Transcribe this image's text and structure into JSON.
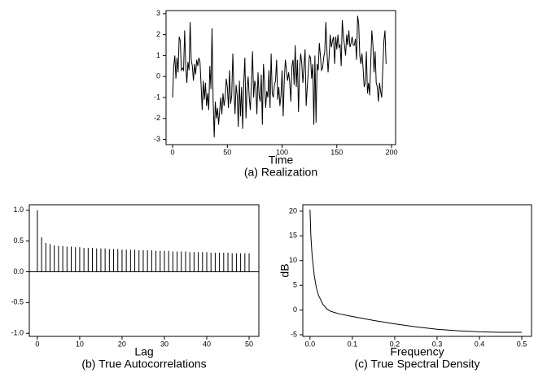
{
  "chart_data": [
    {
      "type": "line",
      "title": "(a) Realization",
      "xlabel": "Time",
      "color": "#000000",
      "x": [
        0,
        1,
        2,
        3,
        4,
        5,
        6,
        7,
        8,
        9,
        10,
        11,
        12,
        13,
        14,
        15,
        16,
        17,
        18,
        19,
        20,
        21,
        22,
        23,
        24,
        25,
        26,
        27,
        28,
        29,
        30,
        31,
        32,
        33,
        34,
        35,
        36,
        37,
        38,
        39,
        40,
        41,
        42,
        43,
        44,
        45,
        46,
        47,
        48,
        49,
        50,
        51,
        52,
        53,
        54,
        55,
        56,
        57,
        58,
        59,
        60,
        61,
        62,
        63,
        64,
        65,
        66,
        67,
        68,
        69,
        70,
        71,
        72,
        73,
        74,
        75,
        76,
        77,
        78,
        79,
        80,
        81,
        82,
        83,
        84,
        85,
        86,
        87,
        88,
        89,
        90,
        91,
        92,
        93,
        94,
        95,
        96,
        97,
        98,
        99,
        100,
        101,
        102,
        103,
        104,
        105,
        106,
        107,
        108,
        109,
        110,
        111,
        112,
        113,
        114,
        115,
        116,
        117,
        118,
        119,
        120,
        121,
        122,
        123,
        124,
        125,
        126,
        127,
        128,
        129,
        130,
        131,
        132,
        133,
        134,
        135,
        136,
        137,
        138,
        139,
        140,
        141,
        142,
        143,
        144,
        145,
        146,
        147,
        148,
        149,
        150,
        151,
        152,
        153,
        154,
        155,
        156,
        157,
        158,
        159,
        160,
        161,
        162,
        163,
        164,
        165,
        166,
        167,
        168,
        169,
        170,
        171,
        172,
        173,
        174,
        175,
        176,
        177,
        178,
        179,
        180,
        181,
        182,
        183,
        184,
        185,
        186,
        187,
        188,
        189,
        190,
        191,
        192,
        193,
        194,
        195
      ],
      "values": [
        -1.0,
        0.5,
        1.0,
        -0.1,
        0.9,
        0.2,
        1.9,
        1.7,
        0.3,
        0.4,
        0.3,
        2.2,
        0.5,
        -0.3,
        0.7,
        0.3,
        2.6,
        0.8,
        0.5,
        -0.2,
        0.6,
        0.1,
        0.8,
        0.5,
        0.9,
        0.7,
        -0.4,
        -1.6,
        -0.2,
        -1.1,
        -0.3,
        -1.4,
        -0.8,
        -1.6,
        0.5,
        -0.6,
        2.3,
        -1.1,
        -2.9,
        -1.2,
        -2.0,
        -1.5,
        -2.3,
        -1.6,
        -1.0,
        -1.8,
        -0.8,
        -1.4,
        -1.0,
        -0.1,
        -0.5,
        -1.5,
        0.3,
        -1.3,
        -0.9,
        1.1,
        -0.6,
        -1.8,
        -0.4,
        -0.9,
        -2.4,
        -0.2,
        -1.9,
        -0.5,
        -2.5,
        -0.3,
        0.9,
        -2.0,
        -0.6,
        0.0,
        -1.0,
        -1.6,
        -0.3,
        1.2,
        -1.0,
        -0.2,
        -0.5,
        -1.8,
        0.2,
        -0.9,
        -1.2,
        0.1,
        -2.3,
        0.6,
        -0.3,
        -1.5,
        -0.7,
        -1.0,
        0.3,
        -1.5,
        1.1,
        -0.8,
        -1.0,
        -0.4,
        -0.2,
        0.8,
        -1.1,
        -0.5,
        -1.4,
        -0.9,
        0.3,
        -1.9,
        -0.2,
        0.8,
        0.3,
        -0.2,
        0.2,
        -0.3,
        -1.2,
        0.5,
        0.8,
        -0.4,
        1.5,
        -0.5,
        0.8,
        -1.7,
        0.3,
        1.1,
        0.6,
        -0.3,
        0.5,
        1.3,
        -1.4,
        -0.5,
        0.3,
        1.0,
        0.9,
        -0.1,
        0.6,
        -2.3,
        1.0,
        -2.2,
        0.6,
        0.3,
        1.6,
        1.0,
        0.3,
        0.4,
        0.9,
        1.2,
        2.6,
        1.2,
        0.2,
        1.0,
        2.0,
        1.4,
        1.7,
        1.9,
        0.6,
        1.9,
        1.3,
        2.0,
        1.4,
        1.5,
        0.5,
        2.7,
        1.9,
        1.5,
        1.0,
        2.0,
        1.5,
        2.2,
        1.4,
        1.6,
        1.9,
        1.5,
        1.5,
        1.8,
        0.8,
        2.9,
        2.5,
        1.0,
        0.6,
        1.1,
        0.4,
        -0.5,
        -0.3,
        1.2,
        -0.8,
        -0.3,
        -0.9,
        0.7,
        2.2,
        1.5,
        0.2,
        1.2,
        -0.3,
        -0.5,
        -1.2,
        -0.3,
        -0.7,
        -1.0,
        0.4,
        1.7,
        2.2,
        0.6
      ],
      "xlim": [
        -6,
        203.7
      ],
      "xticks": [
        0,
        50,
        100,
        150,
        200
      ],
      "ylim": [
        -3.25,
        3.15
      ],
      "yticks": [
        -3,
        -2,
        -1,
        0,
        1,
        2,
        3
      ]
    },
    {
      "type": "stem",
      "title": "(b) True Autocorrelations",
      "xlabel": "Lag",
      "color": "#000000",
      "x": [
        0,
        1,
        2,
        3,
        4,
        5,
        6,
        7,
        8,
        9,
        10,
        11,
        12,
        13,
        14,
        15,
        16,
        17,
        18,
        19,
        20,
        21,
        22,
        23,
        24,
        25,
        26,
        27,
        28,
        29,
        30,
        31,
        32,
        33,
        34,
        35,
        36,
        37,
        38,
        39,
        40,
        41,
        42,
        43,
        44,
        45,
        46,
        47,
        48,
        49,
        50
      ],
      "values": [
        1.0,
        0.56,
        0.47,
        0.45,
        0.43,
        0.42,
        0.42,
        0.41,
        0.41,
        0.4,
        0.4,
        0.39,
        0.39,
        0.39,
        0.38,
        0.38,
        0.38,
        0.37,
        0.37,
        0.37,
        0.36,
        0.36,
        0.36,
        0.36,
        0.35,
        0.35,
        0.35,
        0.35,
        0.34,
        0.34,
        0.34,
        0.34,
        0.33,
        0.33,
        0.33,
        0.33,
        0.32,
        0.32,
        0.32,
        0.32,
        0.32,
        0.31,
        0.31,
        0.31,
        0.31,
        0.31,
        0.3,
        0.3,
        0.3,
        0.3,
        0.3
      ],
      "xlim": [
        -1.9,
        52.3
      ],
      "xticks": [
        0,
        10,
        20,
        30,
        40,
        50
      ],
      "ylim": [
        -1.05,
        1.09
      ],
      "yticks": [
        {
          "value": -1,
          "label": "-1.0"
        },
        -0.5,
        {
          "value": 0,
          "label": "0.0"
        },
        0.5,
        {
          "value": 1,
          "label": "1.0"
        }
      ]
    },
    {
      "type": "line",
      "title": "(c) True Spectral Density",
      "xlabel": "Frequency",
      "ylabel": "dB",
      "color": "#000000",
      "x": [
        0,
        0.002,
        0.005,
        0.01,
        0.015,
        0.02,
        0.03,
        0.04,
        0.05,
        0.07,
        0.1,
        0.15,
        0.2,
        0.25,
        0.3,
        0.35,
        0.4,
        0.45,
        0.5
      ],
      "values": [
        20.3,
        15,
        11,
        7,
        4.5,
        3,
        1.2,
        0.2,
        -0.3,
        -0.8,
        -1.3,
        -2.1,
        -2.8,
        -3.4,
        -3.9,
        -4.2,
        -4.4,
        -4.5,
        -4.5
      ],
      "xlim": [
        -0.017,
        0.523
      ],
      "xticks": [
        {
          "value": 0,
          "label": "0.0"
        },
        0.1,
        0.2,
        0.3,
        0.4,
        0.5
      ],
      "ylim": [
        -5.33,
        21.3
      ],
      "yticks": [
        -5,
        0,
        5,
        10,
        15,
        20
      ]
    }
  ]
}
